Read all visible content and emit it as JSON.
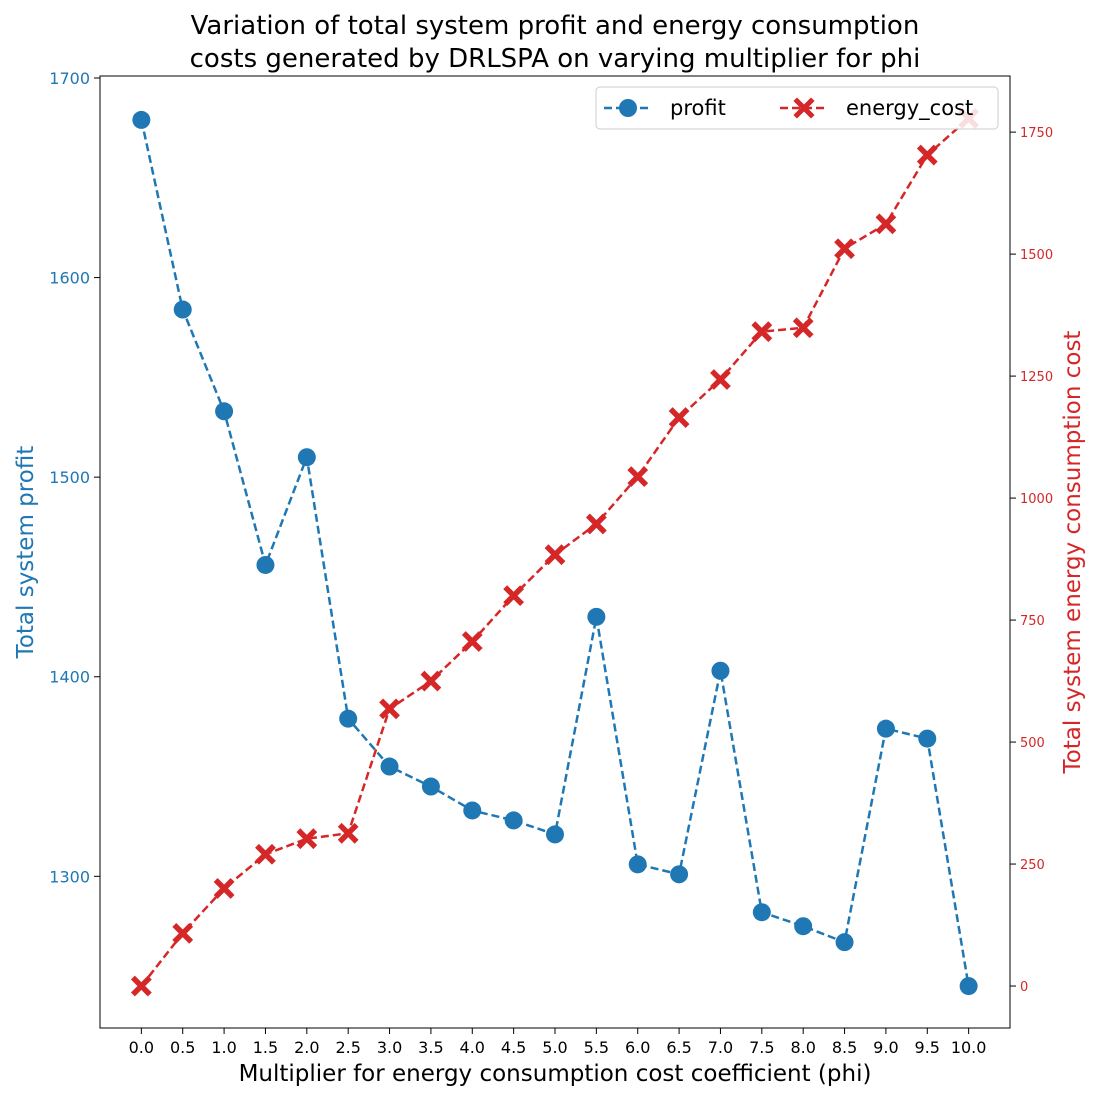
{
  "chart_data": {
    "type": "line",
    "title_lines": [
      "Variation of total system profit and energy consumption",
      "costs generated by DRLSPA on varying multiplier for phi"
    ],
    "xlabel": "Multiplier for energy consumption cost coefficient (phi)",
    "ylabel_left": "Total system profit",
    "ylabel_right": "Total system energy consumption cost",
    "x": [
      0.0,
      0.5,
      1.0,
      1.5,
      2.0,
      2.5,
      3.0,
      3.5,
      4.0,
      4.5,
      5.0,
      5.5,
      6.0,
      6.5,
      7.0,
      7.5,
      8.0,
      8.5,
      9.0,
      9.5,
      10.0
    ],
    "x_tick_labels": [
      "0.0",
      "0.5",
      "1.0",
      "1.5",
      "2.0",
      "2.5",
      "3.0",
      "3.5",
      "4.0",
      "4.5",
      "5.0",
      "5.5",
      "6.0",
      "6.5",
      "7.0",
      "7.5",
      "8.0",
      "8.5",
      "9.0",
      "9.5",
      "10.0"
    ],
    "xlim": [
      -0.5,
      10.5
    ],
    "ylim_left": [
      1224,
      1701
    ],
    "y_ticks_left": [
      1300,
      1400,
      1500,
      1600,
      1700
    ],
    "ylim_right": [
      -86,
      1865
    ],
    "y_ticks_right": [
      0,
      250,
      500,
      750,
      1000,
      1250,
      1500,
      1750
    ],
    "legend_position": "top-right",
    "series": [
      {
        "name": "profit",
        "axis": "left",
        "color": "#1f77b4",
        "marker": "circle",
        "values": [
          1679,
          1584,
          1533,
          1456,
          1510,
          1379,
          1355,
          1345,
          1333,
          1328,
          1321,
          1430,
          1306,
          1301,
          1403,
          1282,
          1275,
          1267,
          1374,
          1369,
          1245
        ]
      },
      {
        "name": "energy_cost",
        "axis": "right",
        "color": "#d62728",
        "marker": "x",
        "values": [
          0,
          108,
          200,
          270,
          302,
          313,
          568,
          625,
          706,
          800,
          884,
          947,
          1044,
          1165,
          1243,
          1341,
          1349,
          1511,
          1562,
          1703,
          1778
        ]
      }
    ]
  }
}
